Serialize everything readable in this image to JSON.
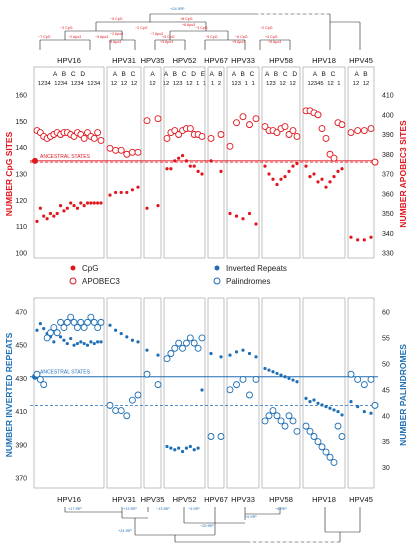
{
  "chart_data": [
    {
      "type": "scatter",
      "ylabel_left": "NUMBER CpG SITES",
      "ylabel_right": "NUMBER APOBEC3 SITES",
      "ylim_left": [
        100,
        160
      ],
      "ylim_right": [
        330,
        410
      ],
      "yticks_left": [
        "100",
        "110",
        "120",
        "130",
        "140",
        "150",
        "160"
      ],
      "yticks_right": [
        "330",
        "340",
        "350",
        "360",
        "370",
        "380",
        "390",
        "400",
        "410"
      ],
      "ancestral_label": "ANCESTRAL STATES",
      "ancestral_left": 135,
      "ancestral_right": 376,
      "series": [
        {
          "name": "CpG",
          "color": "#e0161e",
          "marker": "filled"
        },
        {
          "name": "APOBEC3",
          "color": "#e0161e",
          "marker": "open"
        }
      ],
      "groups": [
        {
          "name": "HPV16",
          "clades": "A B C D",
          "subclades": "1234 1234 1234 1234",
          "cpg": [
            112,
            117,
            114,
            113,
            115,
            114,
            115,
            118,
            116,
            117,
            119,
            118,
            117,
            119,
            118,
            119,
            119,
            119,
            119,
            119
          ],
          "apobec3": [
            392,
            391,
            389,
            388,
            389,
            390,
            391,
            390,
            391,
            391,
            390,
            389,
            391,
            390,
            388,
            391,
            389,
            388,
            391,
            387
          ]
        },
        {
          "name": "HPV31",
          "clades": "A B C",
          "subclades": "12 12 12",
          "cpg": [
            122,
            123,
            123,
            123,
            124,
            125
          ],
          "apobec3": [
            383,
            382,
            382,
            380,
            381,
            381
          ]
        },
        {
          "name": "HPV35",
          "clades": "A",
          "subclades": "12",
          "cpg": [
            117,
            118
          ],
          "apobec3": [
            397,
            398
          ]
        },
        {
          "name": "HPV52",
          "clades": "A B C D E",
          "subclades": "12 123 12 1 1",
          "cpg": [
            132,
            132,
            135,
            136,
            137,
            135,
            133,
            133,
            131,
            130
          ],
          "apobec3": [
            388,
            391,
            392,
            390,
            392,
            393,
            393,
            390,
            390,
            389
          ]
        },
        {
          "name": "HPV67",
          "clades": "A B",
          "subclades": "1 2",
          "cpg": [
            135,
            131
          ],
          "apobec3": [
            388,
            390
          ]
        },
        {
          "name": "HPV33",
          "clades": "A B C",
          "subclades": "123 1 1",
          "cpg": [
            115,
            114,
            113,
            115,
            111
          ],
          "apobec3": [
            384,
            396,
            399,
            395,
            398
          ]
        },
        {
          "name": "HPV58",
          "clades": "A B C D",
          "subclades": "123 12 12",
          "cpg": [
            133,
            130,
            128,
            126,
            128,
            129,
            131,
            133,
            134
          ],
          "apobec3": [
            394,
            392,
            392,
            391,
            393,
            394,
            390,
            392,
            389
          ]
        },
        {
          "name": "HPV18",
          "clades": "A B C",
          "subclades": "12345 12 1",
          "cpg": [
            133,
            129,
            130,
            127,
            128,
            125,
            127,
            129,
            131,
            132
          ],
          "apobec3": [
            402,
            402,
            401,
            400,
            393,
            388,
            380,
            378,
            396,
            395
          ]
        },
        {
          "name": "HPV45",
          "clades": "A B",
          "subclades": "12 12",
          "cpg": [
            106,
            105,
            105,
            106
          ],
          "apobec3": [
            391,
            392,
            392,
            393
          ]
        }
      ]
    },
    {
      "type": "scatter",
      "ylabel_left": "NUMBER INVERTED REPEATS",
      "ylabel_right": "NUMBER PALINDROMES",
      "ylim_left": [
        370,
        470
      ],
      "ylim_right": [
        28,
        60
      ],
      "yticks_left": [
        "370",
        "390",
        "410",
        "430",
        "450",
        "470"
      ],
      "yticks_right": [
        "30",
        "35",
        "40",
        "45",
        "50",
        "55",
        "60"
      ],
      "ancestral_label": "ANCESTRAL STATES",
      "ancestral_left": 431,
      "ancestral_right": 42,
      "series": [
        {
          "name": "Inverted Repeats",
          "color": "#1e6fb5",
          "marker": "filled"
        },
        {
          "name": "Palindromes",
          "color": "#1e6fb5",
          "marker": "open"
        }
      ],
      "groups": [
        {
          "name": "HPV16",
          "cpg": [
            459,
            463,
            460,
            457,
            455,
            452,
            457,
            455,
            453,
            451,
            454,
            450,
            451,
            452,
            451,
            450,
            452,
            451,
            452,
            452
          ],
          "apobec3": [
            48,
            47,
            46,
            55,
            56,
            57,
            56,
            58,
            57,
            58,
            59,
            58,
            57,
            58,
            57,
            58,
            59,
            58,
            57,
            58
          ]
        },
        {
          "name": "HPV31",
          "cpg": [
            462,
            459,
            457,
            455,
            453,
            452
          ],
          "apobec3": [
            42,
            41,
            41,
            40,
            43,
            44
          ]
        },
        {
          "name": "HPV35",
          "cpg": [
            447,
            444
          ],
          "apobec3": [
            48,
            46
          ]
        },
        {
          "name": "HPV52",
          "cpg": [
            389,
            388,
            387,
            388,
            386,
            388,
            389,
            387,
            388,
            423
          ],
          "apobec3": [
            51,
            52,
            53,
            54,
            53,
            54,
            55,
            54,
            53,
            55
          ]
        },
        {
          "name": "HPV67",
          "cpg": [
            445,
            443
          ],
          "apobec3": [
            36,
            36
          ]
        },
        {
          "name": "HPV33",
          "cpg": [
            444,
            446,
            447,
            445,
            443
          ],
          "apobec3": [
            45,
            46,
            47,
            44,
            47
          ]
        },
        {
          "name": "HPV58",
          "cpg": [
            436,
            435,
            434,
            433,
            432,
            431,
            430,
            429,
            428
          ],
          "apobec3": [
            39,
            40,
            41,
            40,
            39,
            38,
            40,
            39,
            37
          ]
        },
        {
          "name": "HPV18",
          "cpg": [
            418,
            416,
            417,
            415,
            414,
            413,
            412,
            411,
            410,
            408
          ],
          "apobec3": [
            38,
            37,
            36,
            35,
            34,
            33,
            32,
            31,
            38,
            36
          ]
        },
        {
          "name": "HPV45",
          "cpg": [
            416,
            413,
            410,
            409
          ],
          "apobec3": [
            48,
            47,
            46,
            47
          ]
        }
      ]
    }
  ],
  "top_tree": {
    "root": "+24 IRP",
    "labels": [
      "−5 CpG",
      "+8 CpG",
      "−3 CpG",
      "−2 CpG",
      "−3 CpG",
      "−2 CpG",
      "−7 CpG",
      "−2 Apo3",
      "−9 Apo3",
      "+5 CpG",
      "−5 CpG",
      "−6 CpG",
      "+4 CpG"
    ],
    "labels2": [
      "+6 Apo3",
      "−7 Apo3",
      "−2 Apo3",
      "+3 Apo3",
      "−9 Apo3",
      "+5 Apo3",
      "+5 Apo3"
    ]
  },
  "bottom_tree": {
    "labels": [
      "+17 IRP",
      "+13 IRP",
      "−13 IRP",
      "−9 IRP",
      "−8 IRP",
      "+5 IRP",
      "+24 IRP",
      "−25 IRP"
    ]
  },
  "legend": {
    "cpg": "CpG",
    "apobec3": "APOBEC3",
    "ir": "Inverted Repeats",
    "pal": "Palindromes"
  }
}
